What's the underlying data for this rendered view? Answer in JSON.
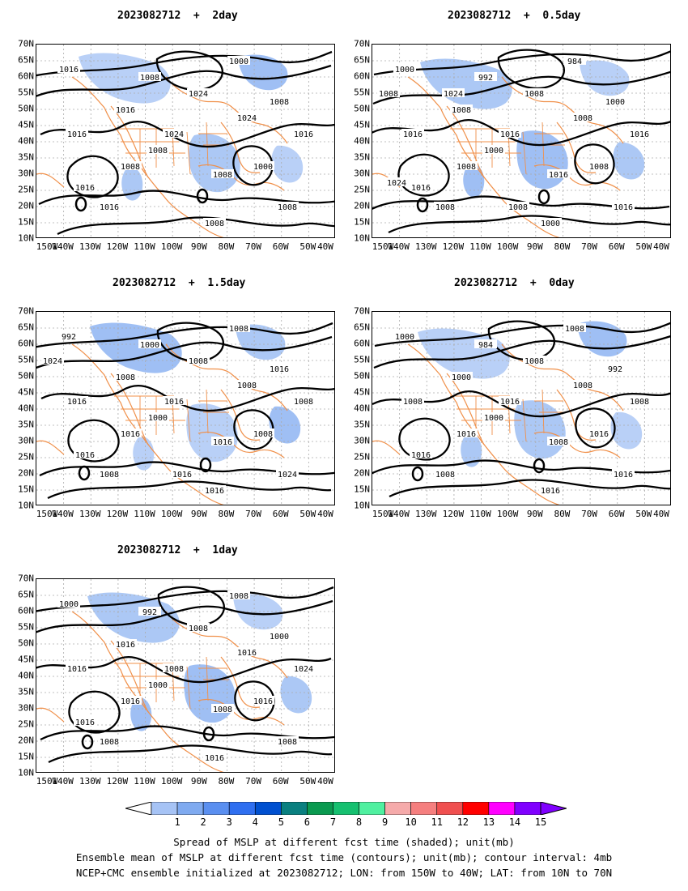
{
  "panels": [
    {
      "title": "2023082712  +  2day"
    },
    {
      "title": "2023082712  +  0.5day"
    },
    {
      "title": "2023082712  +  1.5day"
    },
    {
      "title": "2023082712  +  0day"
    },
    {
      "title": "2023082712  +  1day"
    }
  ],
  "axes": {
    "lat_labels": [
      "70N",
      "65N",
      "60N",
      "55N",
      "50N",
      "45N",
      "40N",
      "35N",
      "30N",
      "25N",
      "20N",
      "15N",
      "10N"
    ],
    "lon_labels": [
      "150W",
      "140W",
      "130W",
      "120W",
      "110W",
      "100W",
      "90W",
      "80W",
      "70W",
      "60W",
      "50W",
      "40W"
    ]
  },
  "contour_labels": {
    "p0": [
      "1016",
      "1000",
      "1008",
      "1008",
      "1016",
      "1016",
      "1024",
      "1008",
      "1016",
      "1008",
      "1000",
      "1008",
      "1024",
      "1008",
      "1016",
      "1016",
      "1008",
      "1024"
    ],
    "p1": [
      "1000",
      "984",
      "992",
      "1000",
      "1008",
      "1016",
      "1016",
      "1008",
      "1016",
      "1016",
      "1008",
      "1016",
      "1008",
      "1000",
      "1008",
      "1016",
      "1000",
      "1008",
      "1008",
      "1008",
      "1024",
      "1024"
    ],
    "p2": [
      "992",
      "1008",
      "1000",
      "1016",
      "1008",
      "1016",
      "1016",
      "1016",
      "1016",
      "1016",
      "1008",
      "1024",
      "1008",
      "1000",
      "1008",
      "1008",
      "1016",
      "1008",
      "1024",
      "1016"
    ],
    "p3": [
      "1000",
      "1008",
      "984",
      "992",
      "1000",
      "1008",
      "1016",
      "1016",
      "1016",
      "1008",
      "1016",
      "1016",
      "1008",
      "1000",
      "1008",
      "1008",
      "1016",
      "1008"
    ],
    "p4": [
      "1000",
      "1008",
      "992",
      "1000",
      "1016",
      "1016",
      "1008",
      "1016",
      "1016",
      "1008",
      "1016",
      "1008",
      "1008",
      "1000",
      "1008",
      "1024",
      "1016",
      "1016"
    ]
  },
  "colorbar": {
    "labels": [
      "1",
      "2",
      "3",
      "4",
      "5",
      "6",
      "7",
      "8",
      "9",
      "10",
      "11",
      "12",
      "13",
      "14",
      "15"
    ],
    "colors": [
      "#a6c3f5",
      "#7faaf0",
      "#5a8ff0",
      "#2f6ff0",
      "#0050d0",
      "#0a8080",
      "#0a9a50",
      "#16c070",
      "#50f0a0",
      "#f5aaaa",
      "#f57f7f",
      "#f05050",
      "#ff0000",
      "#ff00ff",
      "#8000ff"
    ]
  },
  "captions": [
    "Spread of MSLP at different fcst time (shaded); unit(mb)",
    "Ensemble mean of MSLP at different fcst time (contours); unit(mb); contour interval: 4mb",
    "NCEP+CMC ensemble initialized at 2023082712; LON: from 150W to 40W; LAT: from 10N to 70N"
  ],
  "style": {
    "spread_color": "#7faaf0",
    "coast_color": "#f0904a",
    "contour_color": "#000000"
  }
}
